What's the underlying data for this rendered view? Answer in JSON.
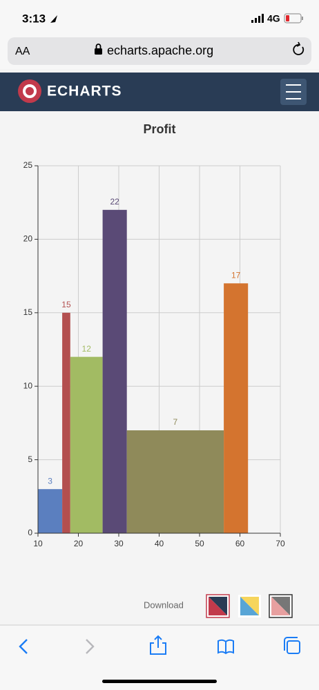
{
  "status_bar": {
    "time": "3:13",
    "network": "4G"
  },
  "address_bar": {
    "text_size": "AA",
    "url": "echarts.apache.org"
  },
  "site_header": {
    "logo": "ECHARTS"
  },
  "chart_data": {
    "type": "histogram",
    "title": "Profit",
    "bins": [
      10,
      16,
      18,
      26,
      32,
      56,
      62
    ],
    "values": [
      3,
      15,
      12,
      22,
      7,
      17
    ],
    "colors": [
      "#5b7fbf",
      "#b34f4f",
      "#a2bb63",
      "#5a4a76",
      "#8f8a5a",
      "#d4742f"
    ],
    "xlim": [
      10,
      70
    ],
    "xticks": [
      10,
      20,
      30,
      40,
      50,
      60,
      70
    ],
    "ylim": [
      0,
      25
    ],
    "yticks": [
      0,
      5,
      10,
      15,
      20,
      25
    ],
    "grid": true
  },
  "toolbox": {
    "download": "Download"
  }
}
